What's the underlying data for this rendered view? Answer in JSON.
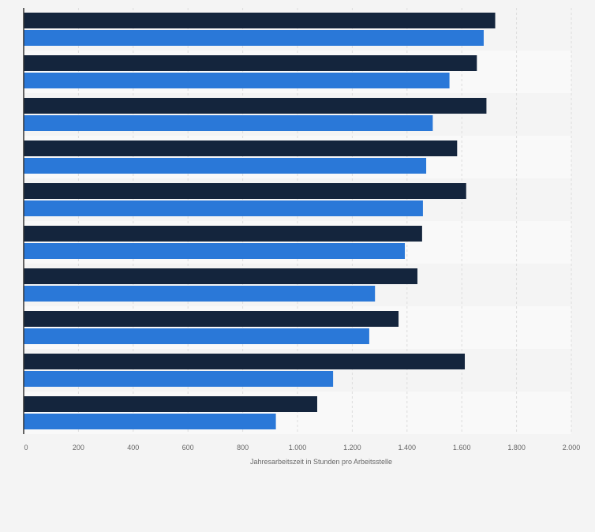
{
  "chart_data": {
    "type": "bar",
    "orientation": "horizontal",
    "categories": [
      "",
      "",
      "",
      "",
      "",
      "",
      "",
      "",
      "",
      ""
    ],
    "series": [
      {
        "values": [
          1722,
          1655,
          1690,
          1583,
          1616,
          1455,
          1438,
          1369,
          1611,
          1072
        ],
        "color": "#14253d"
      },
      {
        "values": [
          1680,
          1555,
          1494,
          1470,
          1458,
          1392,
          1283,
          1262,
          1130,
          921
        ],
        "color": "#2a78d8"
      }
    ],
    "xlabel": "Jahresarbeitszeit in Stunden pro Arbeitsstelle",
    "ylabel": "",
    "xlim": [
      0,
      2000
    ],
    "xticks": [
      "0",
      "200",
      "400",
      "600",
      "800",
      "1.000",
      "1.200",
      "1.400",
      "1.600",
      "1.800",
      "2.000"
    ],
    "grid": true,
    "legend": "none",
    "colors": {
      "background": "#f4f4f4",
      "band": "#f9f9f9",
      "grid": "#dddddd",
      "axis": "#333333",
      "tick_text": "#666666"
    }
  }
}
